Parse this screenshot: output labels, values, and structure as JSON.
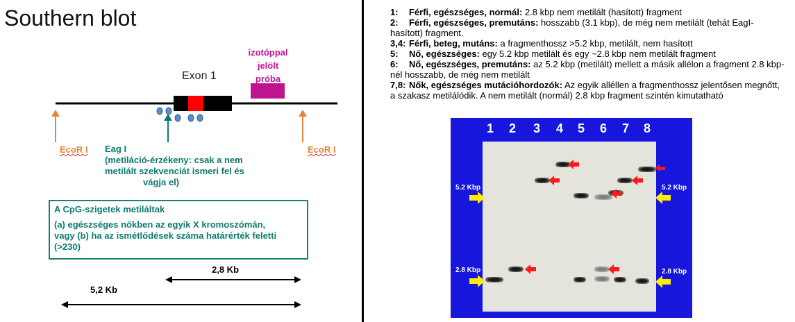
{
  "title": "Southern blot",
  "diagram": {
    "probe_label": [
      "izotóppal",
      "jelölt",
      "próba"
    ],
    "exon_label": "Exon 1",
    "ecor_left": "EcoR I",
    "ecor_right": "EcoR I",
    "eag": {
      "name": "Eag I",
      "desc_line1": "(metiláció-érzékeny: csak a nem",
      "desc_line2": "metilált szekvenciát ismeri fel és",
      "desc_line3": "vágja el)"
    },
    "cpg_box": {
      "title": "A CpG-szigetek metiláltak",
      "line1": "(a) egészséges nőkben az egyik X kromoszómán,",
      "line2": "vagy (b) ha az ismétlődések száma határérték feletti",
      "line3": "(>230)"
    },
    "dist_short": "2,8 Kb",
    "dist_long": "5,2 Kb",
    "colors": {
      "orange": "#e2853b",
      "teal": "#0b7a6e",
      "probe": "#c0138f",
      "exon_red": "#ff0000",
      "dot": "#5b8fc7"
    }
  },
  "notes": [
    {
      "num": "1:",
      "head": "Férfi, egészséges, normál:",
      "text": " 2.8 kbp nem metilált (hasított) fragment"
    },
    {
      "num": "2:",
      "head": "Férfi, egészséges, premutáns:",
      "text": " hosszabb (3.1 kbp), de még nem metilált (tehát EagI-hasított)          fragment."
    },
    {
      "num": "3,4:",
      "head": "Férfi, beteg, mutáns:",
      "text": " a fragmenthossz >5.2 kbp, metilált, nem hasított"
    },
    {
      "num": "5:",
      "head": "Nő, egészséges:",
      "text": " egy 5.2 kbp metilált és egy ~2.8 kbp nem metilált fragment"
    },
    {
      "num": "6:",
      "head": "Nő, egészséges, premutáns:",
      "text": " az 5.2 kbp (metilált) mellett a másik allélon a fragment 2.8 kbp-nél       hosszabb, de még nem metilált"
    },
    {
      "num": "7,8:",
      "head": "Nők, egészséges mutációhordozók:",
      "text": " Az egyik alléllen a fragmenthossz jelentősen megnőtt, a szakasz          metilálódik. A nem metilált (normál) 2.8 kbp fragment szintén kimutatható"
    }
  ],
  "gel": {
    "lanes": [
      "1",
      "2",
      "3",
      "4",
      "5",
      "6",
      "7",
      "8"
    ],
    "marker_high": "5.2 Kbp",
    "marker_low": "2.8 Kbp",
    "colors": {
      "frame": "#1616dc",
      "gel": "#e4e4dc",
      "red_arrow": "#ff1a1a",
      "yellow_arrow": "#ffee00"
    }
  }
}
